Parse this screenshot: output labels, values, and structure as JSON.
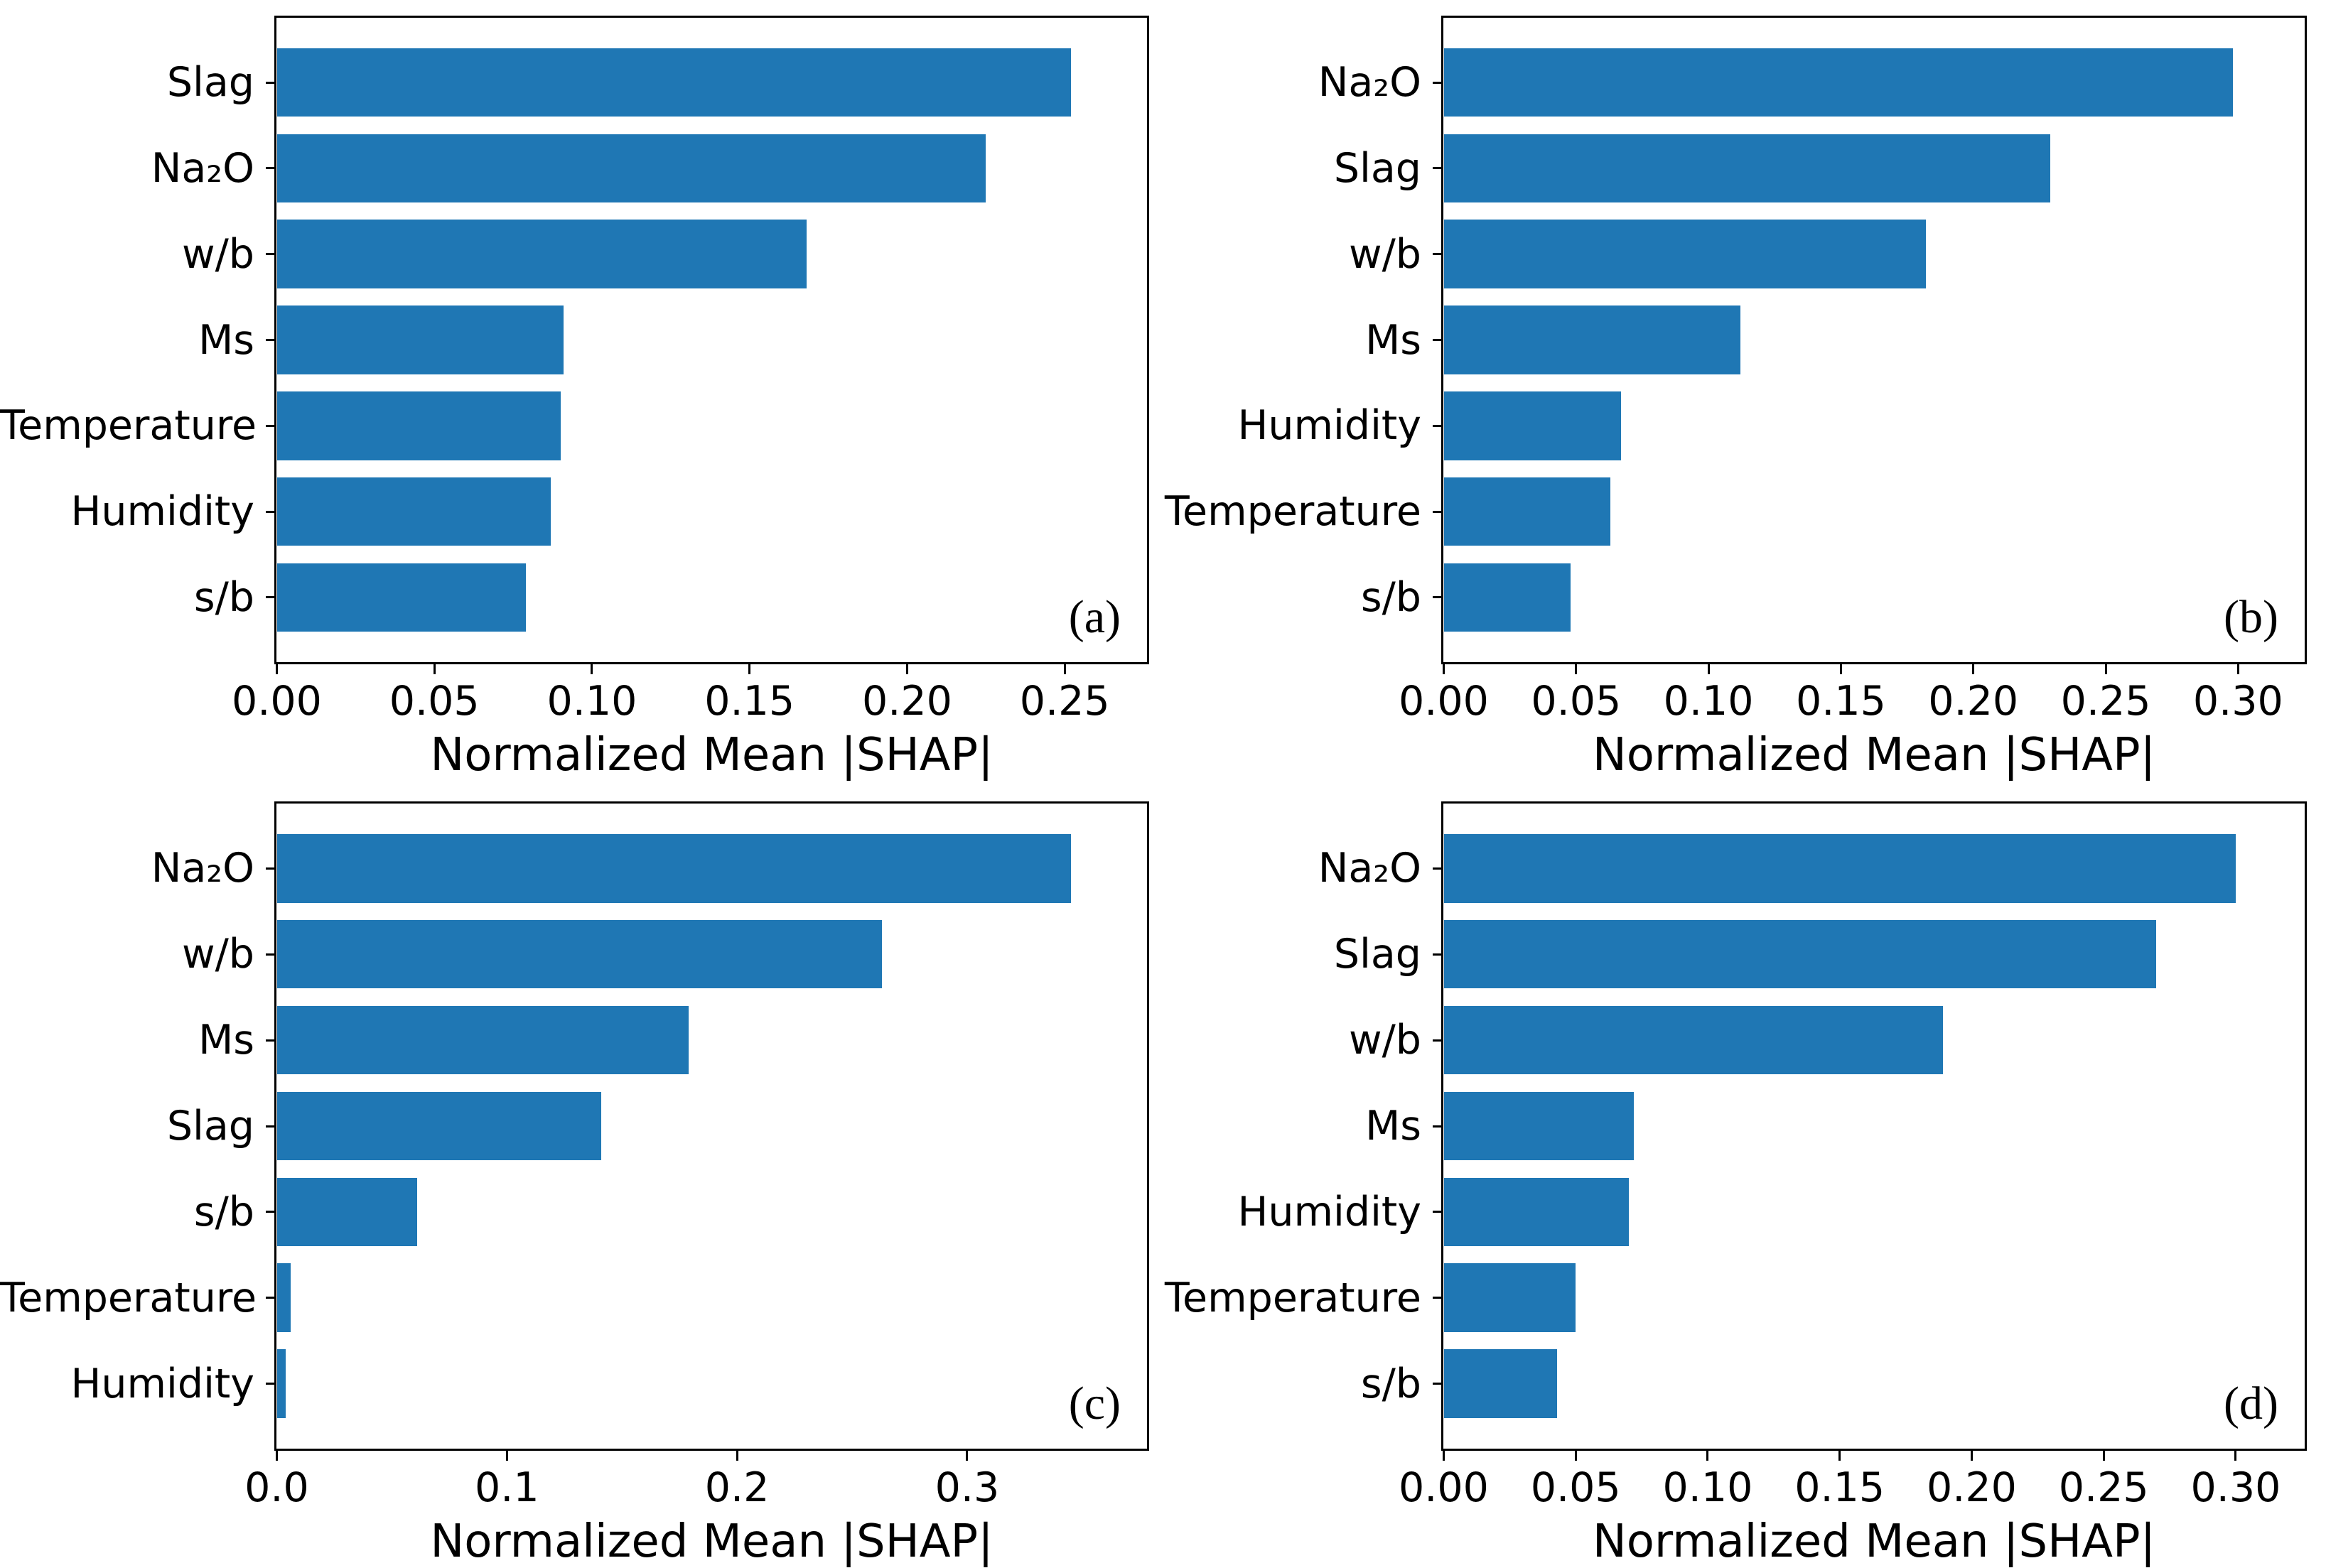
{
  "bar_color": "#1f77b4",
  "spine_color": "#000000",
  "chart_data": [
    {
      "type": "bar",
      "orientation": "horizontal",
      "panel_label": "(a)",
      "categories": [
        "Slag",
        "Na₂O",
        "w/b",
        "Ms",
        "Temperature",
        "Humidity",
        "s/b"
      ],
      "values": [
        0.252,
        0.225,
        0.168,
        0.091,
        0.09,
        0.087,
        0.079
      ],
      "xlabel": "Normalized Mean |SHAP|",
      "ylabel": "",
      "xtick_labels": [
        "0.00",
        "0.05",
        "0.10",
        "0.15",
        "0.20",
        "0.25"
      ],
      "xtick_values": [
        0.0,
        0.05,
        0.1,
        0.15,
        0.2,
        0.25
      ],
      "xlim": [
        0,
        0.276
      ],
      "grid": false,
      "legend": "none"
    },
    {
      "type": "bar",
      "orientation": "horizontal",
      "panel_label": "(b)",
      "categories": [
        "Na₂O",
        "Slag",
        "w/b",
        "Ms",
        "Humidity",
        "Temperature",
        "s/b"
      ],
      "values": [
        0.298,
        0.229,
        0.182,
        0.112,
        0.067,
        0.063,
        0.048
      ],
      "xlabel": "Normalized Mean |SHAP|",
      "ylabel": "",
      "xtick_labels": [
        "0.00",
        "0.05",
        "0.10",
        "0.15",
        "0.20",
        "0.25",
        "0.30"
      ],
      "xtick_values": [
        0.0,
        0.05,
        0.1,
        0.15,
        0.2,
        0.25,
        0.3
      ],
      "xlim": [
        0,
        0.325
      ],
      "grid": false,
      "legend": "none"
    },
    {
      "type": "bar",
      "orientation": "horizontal",
      "panel_label": "(c)",
      "categories": [
        "Na₂O",
        "w/b",
        "Ms",
        "Slag",
        "s/b",
        "Temperature",
        "Humidity"
      ],
      "values": [
        0.345,
        0.263,
        0.179,
        0.141,
        0.061,
        0.006,
        0.004
      ],
      "xlabel": "Normalized Mean |SHAP|",
      "ylabel": "",
      "xtick_labels": [
        "0.0",
        "0.1",
        "0.2",
        "0.3"
      ],
      "xtick_values": [
        0.0,
        0.1,
        0.2,
        0.3
      ],
      "xlim": [
        0,
        0.378
      ],
      "grid": false,
      "legend": "none"
    },
    {
      "type": "bar",
      "orientation": "horizontal",
      "panel_label": "(d)",
      "categories": [
        "Na₂O",
        "Slag",
        "w/b",
        "Ms",
        "Humidity",
        "Temperature",
        "s/b"
      ],
      "values": [
        0.3,
        0.27,
        0.189,
        0.072,
        0.07,
        0.05,
        0.043
      ],
      "xlabel": "Normalized Mean |SHAP|",
      "ylabel": "",
      "xtick_labels": [
        "0.00",
        "0.05",
        "0.10",
        "0.15",
        "0.20",
        "0.25",
        "0.30"
      ],
      "xtick_values": [
        0.0,
        0.05,
        0.1,
        0.15,
        0.2,
        0.25,
        0.3
      ],
      "xlim": [
        0,
        0.326
      ],
      "grid": false,
      "legend": "none"
    }
  ]
}
